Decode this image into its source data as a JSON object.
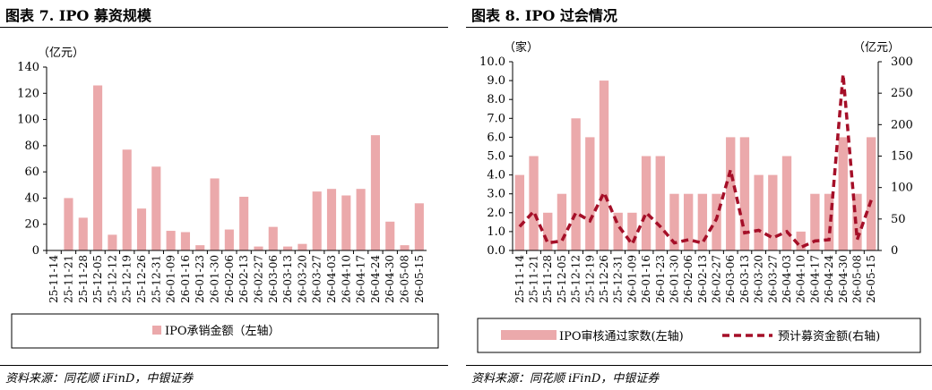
{
  "left": {
    "title": "图表 7. IPO 募资规模",
    "source": "资料来源：同花顺 iFinD，中银证券",
    "chart_data": {
      "type": "bar",
      "ylabel": "（亿元）",
      "ylim": [
        0,
        140
      ],
      "yticks": [
        0,
        20,
        40,
        60,
        80,
        100,
        120,
        140
      ],
      "bar_color": "#eba9ab",
      "categories": [
        "25-11-14",
        "25-11-21",
        "25-11-28",
        "25-12-05",
        "25-12-12",
        "25-12-19",
        "25-12-26",
        "25-12-31",
        "26-01-09",
        "26-01-16",
        "26-01-23",
        "26-01-30",
        "26-02-06",
        "26-02-13",
        "26-02-27",
        "26-03-06",
        "26-03-13",
        "26-03-20",
        "26-03-27",
        "26-04-03",
        "26-04-10",
        "26-04-17",
        "26-04-24",
        "26-04-30",
        "26-05-08",
        "26-05-15"
      ],
      "series": [
        {
          "name": "IPO承销金额（左轴）",
          "values": [
            0,
            40,
            25,
            126,
            12,
            77,
            32,
            64,
            15,
            14,
            4,
            55,
            16,
            41,
            3,
            18,
            3,
            5,
            45,
            47,
            42,
            47,
            88,
            22,
            4,
            36
          ]
        }
      ],
      "legend": "bottom"
    }
  },
  "right": {
    "title": "图表 8. IPO 过会情况",
    "source": "资料来源：同花顺 iFinD，中银证券",
    "chart_data": {
      "type": "bar",
      "ylabel_left": "（家）",
      "ylabel_right": "（亿元）",
      "ylim_left": [
        0,
        10
      ],
      "yticks_left": [
        "0.0",
        "1.0",
        "2.0",
        "3.0",
        "4.0",
        "5.0",
        "6.0",
        "7.0",
        "8.0",
        "9.0",
        "10.0"
      ],
      "ylim_right": [
        0,
        300
      ],
      "yticks_right": [
        0,
        50,
        100,
        150,
        200,
        250,
        300
      ],
      "bar_color": "#eba9ab",
      "line_color": "#a50f28",
      "categories": [
        "25-11-14",
        "25-11-21",
        "25-11-28",
        "25-12-05",
        "25-12-12",
        "25-12-19",
        "25-12-26",
        "25-12-31",
        "26-01-09",
        "26-01-16",
        "26-01-23",
        "26-01-30",
        "26-02-06",
        "26-02-13",
        "26-02-27",
        "26-03-06",
        "26-03-13",
        "26-03-20",
        "26-03-27",
        "26-04-03",
        "26-04-10",
        "26-04-17",
        "26-04-24",
        "26-04-30",
        "26-05-08",
        "26-05-15"
      ],
      "series": [
        {
          "name": "IPO审核通过家数(左轴)",
          "type": "bar",
          "axis": "left",
          "values": [
            4,
            5,
            2,
            3,
            7,
            6,
            9,
            2,
            2,
            5,
            5,
            3,
            3,
            3,
            3,
            6,
            6,
            4,
            4,
            5,
            1,
            3,
            3,
            6,
            3,
            6
          ]
        },
        {
          "name": "预计募资金额(右轴)",
          "type": "line",
          "axis": "right",
          "values": [
            38,
            62,
            12,
            15,
            60,
            47,
            92,
            40,
            10,
            60,
            38,
            12,
            17,
            12,
            50,
            128,
            28,
            32,
            20,
            30,
            5,
            15,
            17,
            280,
            17,
            80
          ]
        }
      ],
      "legend": "bottom"
    }
  }
}
